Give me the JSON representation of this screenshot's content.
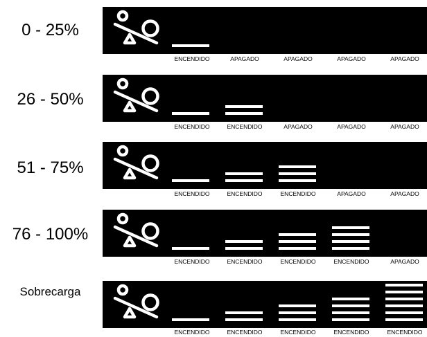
{
  "levels": [
    {
      "label": "0 - 25%",
      "statuses": [
        "ENCENDIDO",
        "APAGADO",
        "APAGADO",
        "APAGADO",
        "APAGADO"
      ]
    },
    {
      "label": "26 - 50%",
      "statuses": [
        "ENCENDIDO",
        "ENCENDIDO",
        "APAGADO",
        "APAGADO",
        "APAGADO"
      ]
    },
    {
      "label": "51 - 75%",
      "statuses": [
        "ENCENDIDO",
        "ENCENDIDO",
        "ENCENDIDO",
        "APAGADO",
        "APAGADO"
      ]
    },
    {
      "label": "76 - 100%",
      "statuses": [
        "ENCENDIDO",
        "ENCENDIDO",
        "ENCENDIDO",
        "ENCENDIDO",
        "APAGADO"
      ]
    },
    {
      "label": "Sobrecarga",
      "statuses": [
        "ENCENDIDO",
        "ENCENDIDO",
        "ENCENDIDO",
        "ENCENDIDO",
        "ENCENDIDO"
      ]
    }
  ],
  "colors": {
    "panel": "#000000",
    "segment": "#ffffff",
    "text": "#000000"
  },
  "icon": "load-scale-icon"
}
